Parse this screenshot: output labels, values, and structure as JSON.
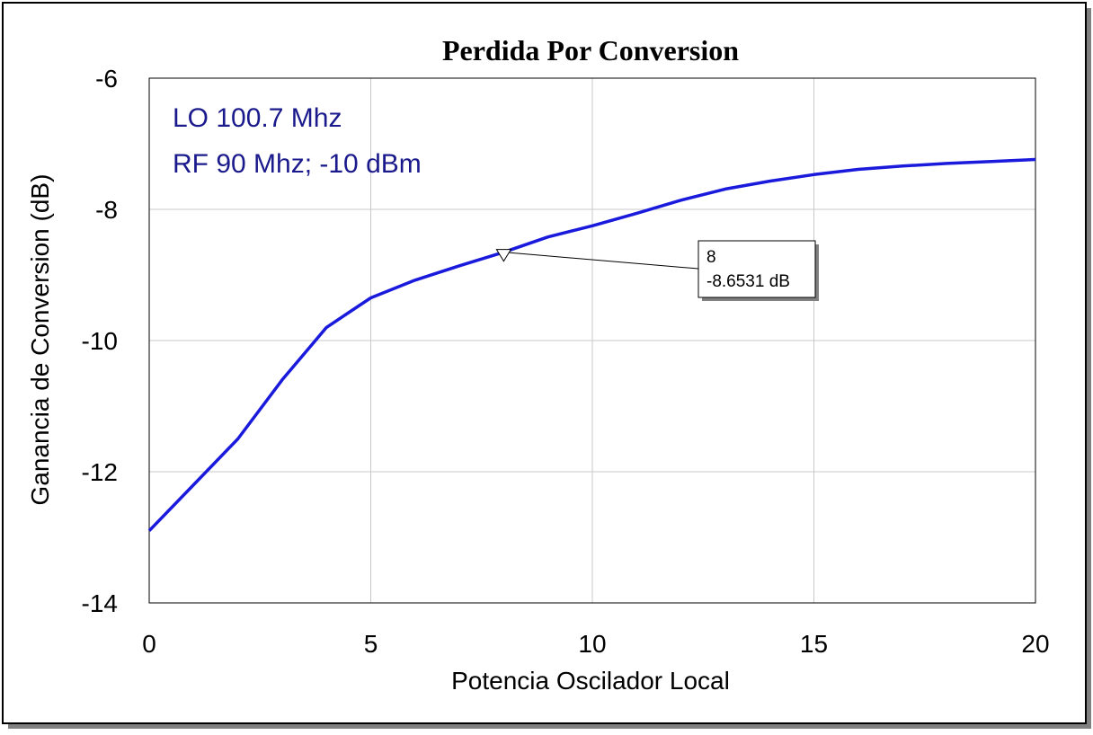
{
  "chart_data": {
    "type": "line",
    "title": "Perdida Por Conversion",
    "xlabel": "Potencia Oscilador Local",
    "ylabel": "Ganancia de Conversion (dB)",
    "xlim": [
      0,
      20
    ],
    "ylim": [
      -14,
      -6
    ],
    "x_ticks": [
      0,
      5,
      10,
      15,
      20
    ],
    "y_ticks": [
      -14,
      -12,
      -10,
      -8,
      -6
    ],
    "x_tick_labels": [
      "0",
      "5",
      "10",
      "15",
      "20"
    ],
    "y_tick_labels": [
      "-14",
      "-12",
      "-10",
      "-8",
      "-6"
    ],
    "grid": true,
    "annotations": [
      "LO 100.7 Mhz",
      "RF 90 Mhz; -10 dBm"
    ],
    "series": [
      {
        "color": "#1a1adc",
        "x": [
          0,
          1,
          2,
          3,
          4,
          5,
          6,
          7,
          8,
          9,
          10,
          11,
          12,
          13,
          14,
          15,
          16,
          17,
          18,
          19,
          20
        ],
        "y": [
          -12.9,
          -12.2,
          -11.5,
          -10.6,
          -9.8,
          -9.35,
          -9.08,
          -8.86,
          -8.6531,
          -8.42,
          -8.25,
          -8.06,
          -7.86,
          -7.69,
          -7.57,
          -7.47,
          -7.39,
          -7.34,
          -7.3,
          -7.27,
          -7.24
        ]
      }
    ],
    "marker": {
      "x": 8,
      "y": -8.6531,
      "label_x": "8",
      "label_y": "-8.6531 dB"
    }
  }
}
